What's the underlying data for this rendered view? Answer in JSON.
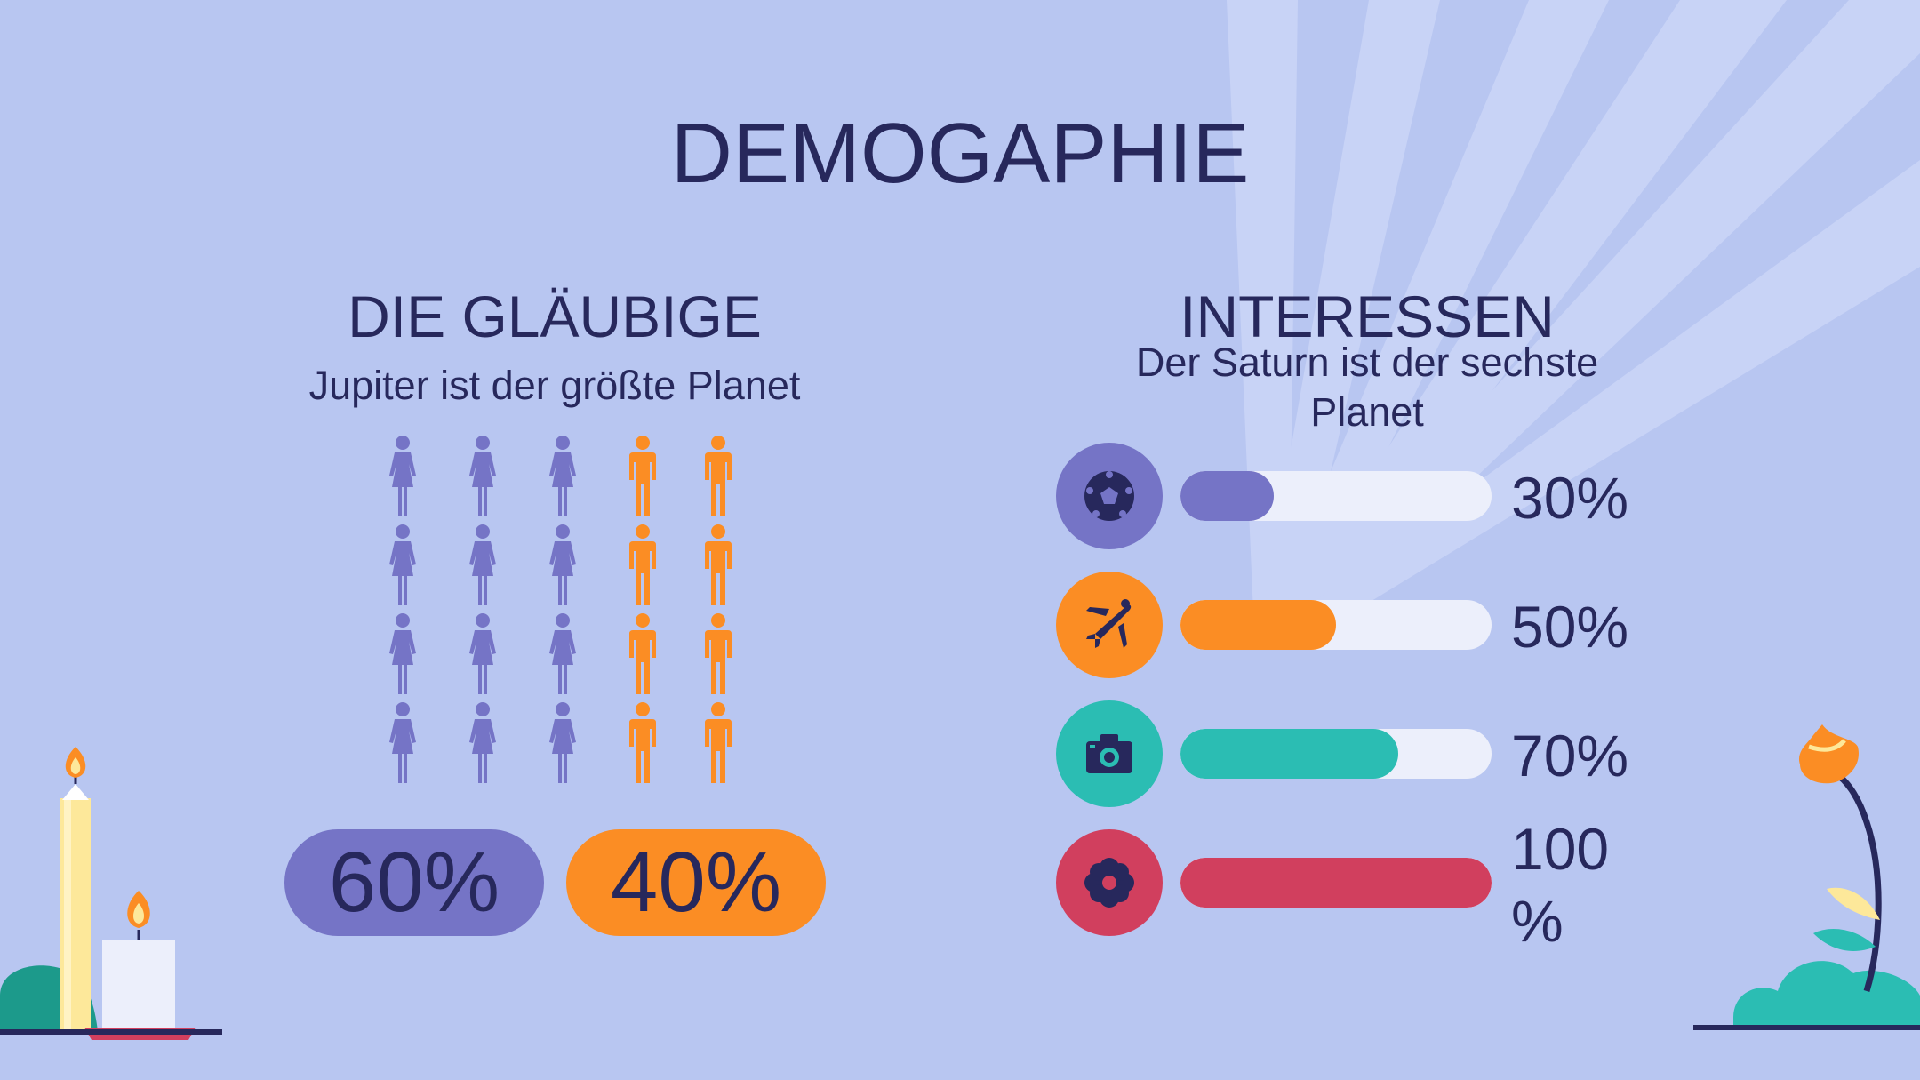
{
  "slide": {
    "title": "DEMOGAPHIE",
    "colors": {
      "background": "#b8c6f1",
      "text": "#27285c",
      "purple": "#7574c6",
      "orange": "#fb8d24",
      "teal": "#2bbdb3",
      "red": "#d13f5e",
      "track": "#eceffb"
    }
  },
  "believers": {
    "heading": "DIE GLÄUBIGE",
    "subtitle": "Jupiter ist der größte Planet",
    "women_percent_label": "60%",
    "men_percent_label": "40%",
    "women_icon": "female-person-icon",
    "men_icon": "male-person-icon"
  },
  "interests": {
    "heading": "INTERESSEN",
    "subtitle_line1": "Der Saturn ist der sechste",
    "subtitle_line2": "Planet",
    "items": [
      {
        "icon": "soccer-ball-icon",
        "percent": 30,
        "label": "30%",
        "color": "#7574c6"
      },
      {
        "icon": "airplane-icon",
        "percent": 50,
        "label": "50%",
        "color": "#fb8d24"
      },
      {
        "icon": "camera-icon",
        "percent": 70,
        "label": "70%",
        "color": "#2bbdb3"
      },
      {
        "icon": "flower-icon",
        "percent": 100,
        "label_line1": "100",
        "label_line2": "%",
        "color": "#d13f5e"
      }
    ]
  }
}
